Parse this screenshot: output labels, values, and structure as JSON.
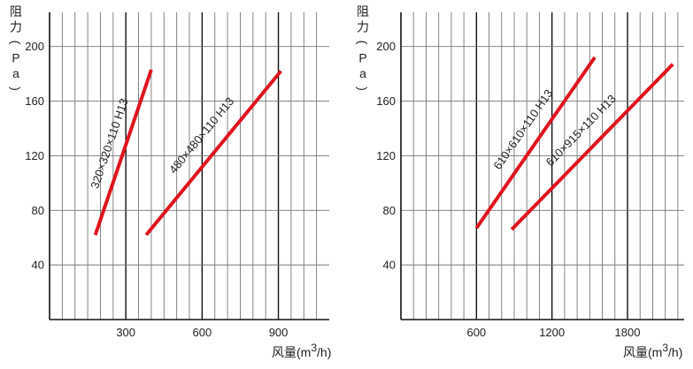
{
  "chart_data": [
    {
      "type": "line",
      "ylabel_chars": [
        "阻",
        "力",
        "(",
        "P",
        "a",
        ")"
      ],
      "xlabel": "风量(m",
      "xlabel_sup": "3",
      "xlabel_tail": "/h)",
      "xlim": [
        0,
        1100
      ],
      "ylim": [
        0,
        225
      ],
      "x_grid_step": 50,
      "x_major": [
        300,
        600,
        900
      ],
      "x_tick_labels": [
        "300",
        "600",
        "900"
      ],
      "y_ticks": [
        40,
        80,
        120,
        160,
        200
      ],
      "y_tick_labels": [
        "40",
        "80",
        "120",
        "160",
        "200"
      ],
      "line_color": "#e0141e",
      "series": [
        {
          "name": "320×320×110 H13",
          "x": [
            180,
            400
          ],
          "y": [
            62,
            183
          ]
        },
        {
          "name": "480×480×110 H13",
          "x": [
            380,
            910
          ],
          "y": [
            62,
            182
          ]
        }
      ]
    },
    {
      "type": "line",
      "ylabel_chars": [
        "阻",
        "力",
        "(",
        "P",
        "a",
        ")"
      ],
      "xlabel": "风量(m",
      "xlabel_sup": "3",
      "xlabel_tail": "/h)",
      "xlim": [
        0,
        2250
      ],
      "ylim": [
        0,
        225
      ],
      "x_grid_step": 100,
      "x_major": [
        600,
        1200,
        1800
      ],
      "x_tick_labels": [
        "600",
        "1200",
        "1800"
      ],
      "y_ticks": [
        40,
        80,
        120,
        160,
        200
      ],
      "y_tick_labels": [
        "40",
        "80",
        "120",
        "160",
        "200"
      ],
      "line_color": "#e0141e",
      "series": [
        {
          "name": "610×610×110 H13",
          "x": [
            600,
            1540
          ],
          "y": [
            67,
            192
          ]
        },
        {
          "name": "610×915×110 H13",
          "x": [
            880,
            2160
          ],
          "y": [
            66,
            187
          ]
        }
      ]
    }
  ]
}
